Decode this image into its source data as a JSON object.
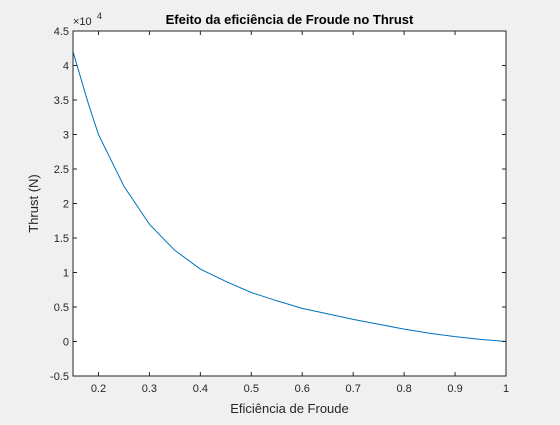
{
  "chart_data": {
    "type": "line",
    "title": "Efeito da eficiência de Froude no Thrust",
    "xlabel": "Eficiência de Froude",
    "ylabel": "Thrust (N)",
    "y_exponent_label": "×10",
    "y_exponent_power": "4",
    "xlim": [
      0.15,
      1.0
    ],
    "ylim": [
      -0.5,
      4.5
    ],
    "xticks": [
      0.2,
      0.3,
      0.4,
      0.5,
      0.6,
      0.7,
      0.8,
      0.9,
      1.0
    ],
    "xtick_labels": [
      "0.2",
      "0.3",
      "0.4",
      "0.5",
      "0.6",
      "0.7",
      "0.8",
      "0.9",
      "1"
    ],
    "yticks": [
      -0.5,
      0,
      0.5,
      1,
      1.5,
      2,
      2.5,
      3,
      3.5,
      4,
      4.5
    ],
    "ytick_labels": [
      "-0.5",
      "0",
      "0.5",
      "1",
      "1.5",
      "2",
      "2.5",
      "3",
      "3.5",
      "4",
      "4.5"
    ],
    "y_scale_factor": 10000,
    "grid": false,
    "line_color": "#0072bd",
    "series": [
      {
        "x": [
          0.15,
          0.16,
          0.18,
          0.2,
          0.22,
          0.25,
          0.28,
          0.3,
          0.33,
          0.35,
          0.4,
          0.45,
          0.5,
          0.55,
          0.6,
          0.65,
          0.7,
          0.75,
          0.8,
          0.85,
          0.9,
          0.95,
          1.0
        ],
        "y": [
          4.2,
          3.95,
          3.45,
          3.0,
          2.7,
          2.25,
          1.92,
          1.7,
          1.47,
          1.32,
          1.05,
          0.87,
          0.71,
          0.59,
          0.48,
          0.4,
          0.32,
          0.25,
          0.18,
          0.12,
          0.07,
          0.03,
          0.0
        ]
      }
    ]
  }
}
